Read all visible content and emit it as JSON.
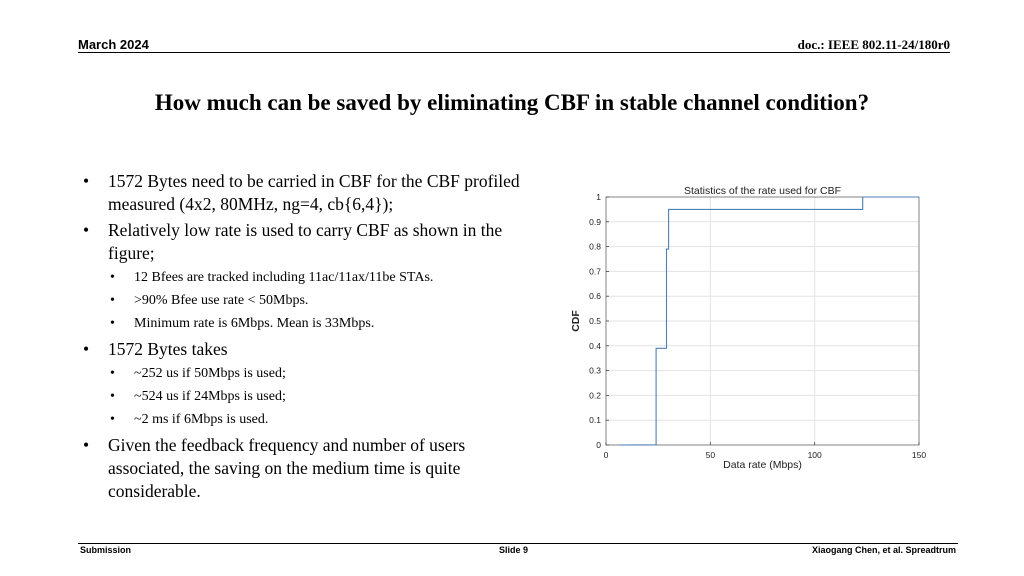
{
  "header": {
    "date": "March 2024",
    "doc_id": "doc.: IEEE 802.11-24/180r0"
  },
  "title": "How much can be saved by eliminating CBF in stable channel condition?",
  "bullets": [
    {
      "level": 1,
      "text": "1572 Bytes need to be carried in CBF for the CBF profiled measured (4x2, 80MHz, ng=4, cb{6,4});"
    },
    {
      "level": 1,
      "text": "Relatively low rate is used to carry CBF as shown in the figure;"
    },
    {
      "level": 2,
      "text": "12 Bfees are tracked including 11ac/11ax/11be STAs."
    },
    {
      "level": 2,
      "text": ">90% Bfee use rate < 50Mbps."
    },
    {
      "level": 2,
      "text": "Minimum rate is 6Mbps. Mean is 33Mbps."
    },
    {
      "level": 1,
      "text": "1572 Bytes takes"
    },
    {
      "level": 2,
      "text": "~252 us if 50Mbps is used;"
    },
    {
      "level": 2,
      "text": "~524 us if 24Mbps is used;"
    },
    {
      "level": 2,
      "text": "~2 ms if 6Mbps is used."
    },
    {
      "level": 1,
      "text": "Given the feedback frequency and number of users associated, the saving on the medium time is quite considerable."
    }
  ],
  "bullet_glyph": "•",
  "chart_data": {
    "type": "line",
    "title": "Statistics of the rate used for CBF",
    "xlabel": "Data rate (Mbps)",
    "ylabel": "CDF",
    "xlim": [
      0,
      150
    ],
    "ylim": [
      0,
      1
    ],
    "xticks": [
      0,
      50,
      100,
      150
    ],
    "yticks": [
      0,
      0.1,
      0.2,
      0.3,
      0.4,
      0.5,
      0.6,
      0.7,
      0.8,
      0.9,
      1
    ],
    "grid": true,
    "line_color": "#4f7fb8",
    "series": [
      {
        "step": true,
        "x": [
          6,
          24,
          24,
          29,
          29,
          30,
          30,
          123,
          123,
          150
        ],
        "y": [
          0,
          0.001,
          0.39,
          0.39,
          0.79,
          0.79,
          0.95,
          0.95,
          1,
          1
        ]
      }
    ]
  },
  "footer": {
    "left": "Submission",
    "center": "Slide 9",
    "right": "Xiaogang Chen, et al. Spreadtrum"
  }
}
